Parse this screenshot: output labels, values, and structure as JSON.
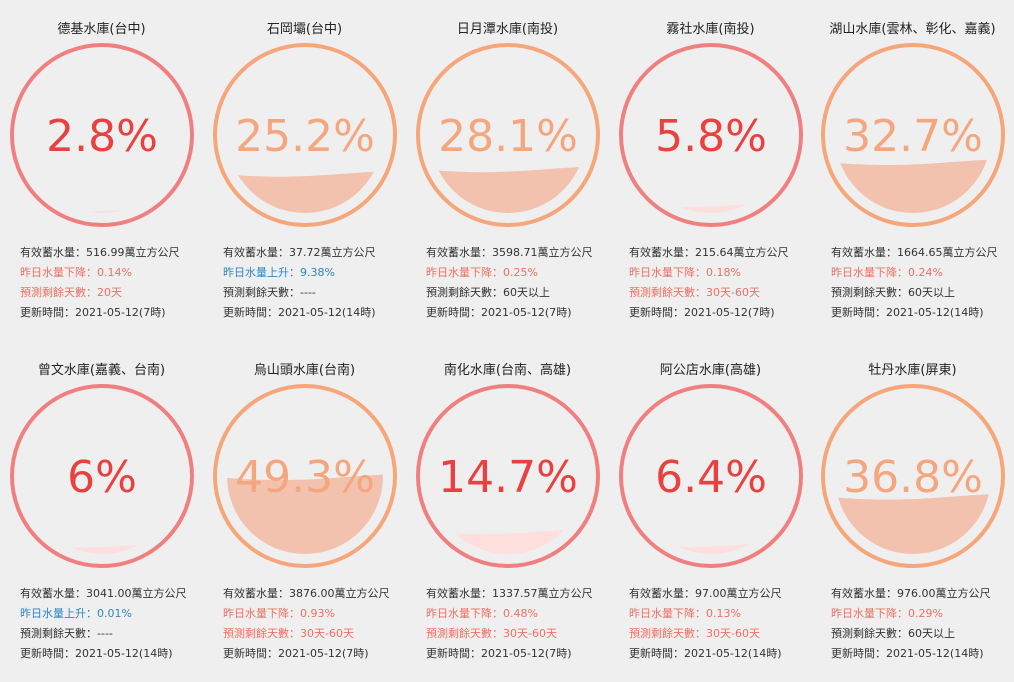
{
  "colors": {
    "critical_ring": "#f08080",
    "critical_text": "#e8413f",
    "critical_fill": "#ffdede",
    "normal_ring": "#f5a67a",
    "normal_text": "#f4a77e",
    "normal_fill": "#f2c2ae",
    "drop_text": "#ec7063",
    "rise_text": "#2e86c1"
  },
  "reservoirs": [
    {
      "name": "德基水庫(台中)",
      "percent_label": "2.8%",
      "percent": 2.8,
      "level": "critical",
      "storage": "有效蓄水量：516.99萬立方公尺",
      "change": "昨日水量下降：0.14%",
      "change_dir": "down",
      "days": "預測剩餘天數：20天",
      "days_style": "warn",
      "update": "更新時間：2021-05-12(7時)"
    },
    {
      "name": "石岡壩(台中)",
      "percent_label": "25.2%",
      "percent": 25.2,
      "level": "normal",
      "storage": "有效蓄水量：37.72萬立方公尺",
      "change": "昨日水量上升：9.38%",
      "change_dir": "up",
      "days": "預測剩餘天數：----",
      "days_style": "ok",
      "update": "更新時間：2021-05-12(14時)"
    },
    {
      "name": "日月潭水庫(南投)",
      "percent_label": "28.1%",
      "percent": 28.1,
      "level": "normal",
      "storage": "有效蓄水量：3598.71萬立方公尺",
      "change": "昨日水量下降：0.25%",
      "change_dir": "down",
      "days": "預測剩餘天數：60天以上",
      "days_style": "ok",
      "update": "更新時間：2021-05-12(7時)"
    },
    {
      "name": "霧社水庫(南投)",
      "percent_label": "5.8%",
      "percent": 5.8,
      "level": "critical",
      "storage": "有效蓄水量：215.64萬立方公尺",
      "change": "昨日水量下降：0.18%",
      "change_dir": "down",
      "days": "預測剩餘天數：30天-60天",
      "days_style": "warn",
      "update": "更新時間：2021-05-12(7時)"
    },
    {
      "name": "湖山水庫(雲林、彰化、嘉義)",
      "percent_label": "32.7%",
      "percent": 32.7,
      "level": "normal",
      "storage": "有效蓄水量：1664.65萬立方公尺",
      "change": "昨日水量下降：0.24%",
      "change_dir": "down",
      "days": "預測剩餘天數：60天以上",
      "days_style": "ok",
      "update": "更新時間：2021-05-12(14時)"
    },
    {
      "name": "曾文水庫(嘉義、台南)",
      "percent_label": "6%",
      "percent": 6,
      "level": "critical",
      "storage": "有效蓄水量：3041.00萬立方公尺",
      "change": "昨日水量上升：0.01%",
      "change_dir": "up",
      "days": "預測剩餘天數：----",
      "days_style": "ok",
      "update": "更新時間：2021-05-12(14時)"
    },
    {
      "name": "烏山頭水庫(台南)",
      "percent_label": "49.3%",
      "percent": 49.3,
      "level": "normal",
      "storage": "有效蓄水量：3876.00萬立方公尺",
      "change": "昨日水量下降：0.93%",
      "change_dir": "down",
      "days": "預測剩餘天數：30天-60天",
      "days_style": "warn",
      "update": "更新時間：2021-05-12(7時)"
    },
    {
      "name": "南化水庫(台南、高雄)",
      "percent_label": "14.7%",
      "percent": 14.7,
      "level": "critical",
      "storage": "有效蓄水量：1337.57萬立方公尺",
      "change": "昨日水量下降：0.48%",
      "change_dir": "down",
      "days": "預測剩餘天數：30天-60天",
      "days_style": "warn",
      "update": "更新時間：2021-05-12(7時)"
    },
    {
      "name": "阿公店水庫(高雄)",
      "percent_label": "6.4%",
      "percent": 6.4,
      "level": "critical",
      "storage": "有效蓄水量：97.00萬立方公尺",
      "change": "昨日水量下降：0.13%",
      "change_dir": "down",
      "days": "預測剩餘天數：30天-60天",
      "days_style": "warn",
      "update": "更新時間：2021-05-12(14時)"
    },
    {
      "name": "牡丹水庫(屏東)",
      "percent_label": "36.8%",
      "percent": 36.8,
      "level": "normal",
      "storage": "有效蓄水量：976.00萬立方公尺",
      "change": "昨日水量下降：0.29%",
      "change_dir": "down",
      "days": "預測剩餘天數：60天以上",
      "days_style": "ok",
      "update": "更新時間：2021-05-12(14時)"
    }
  ]
}
